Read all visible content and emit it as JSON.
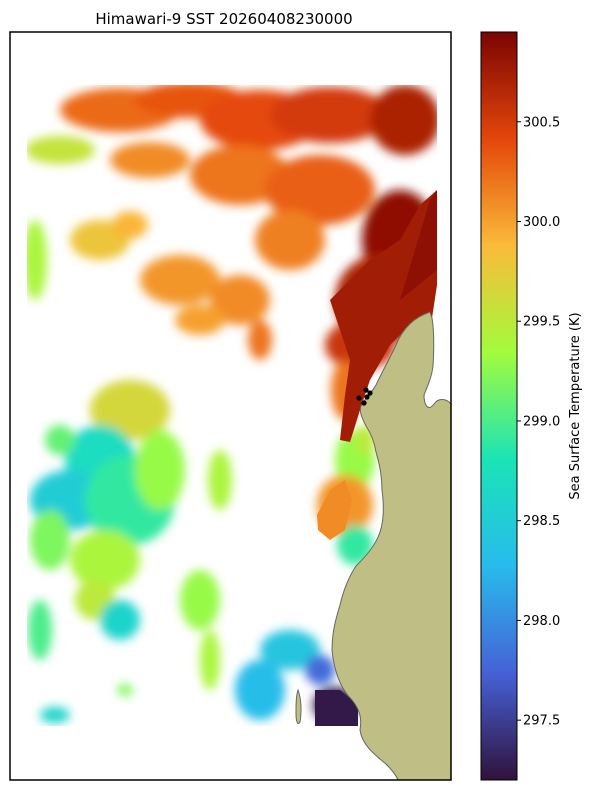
{
  "chart_data": {
    "type": "heatmap",
    "title": "Himawari-9 SST 20260408230000",
    "colorbar": {
      "label": "Sea Surface Temperature (K)",
      "range": [
        297.2,
        300.95
      ],
      "ticks": [
        297.5,
        298.0,
        298.5,
        299.0,
        299.5,
        300.0,
        300.5
      ],
      "tick_labels": [
        "297.5",
        "298.0",
        "298.5",
        "299.0",
        "299.5",
        "300.0",
        "300.5"
      ],
      "colormap": [
        "#30123b",
        "#4661d6",
        "#28bbec",
        "#1ae4b6",
        "#a2fc3c",
        "#fabb3a",
        "#e4460a",
        "#7a0403"
      ]
    },
    "land_color": "#bfbe84",
    "coastline_color": "#666666",
    "marker_color": "#000000",
    "grid": false,
    "legend": "colorbar-right"
  }
}
